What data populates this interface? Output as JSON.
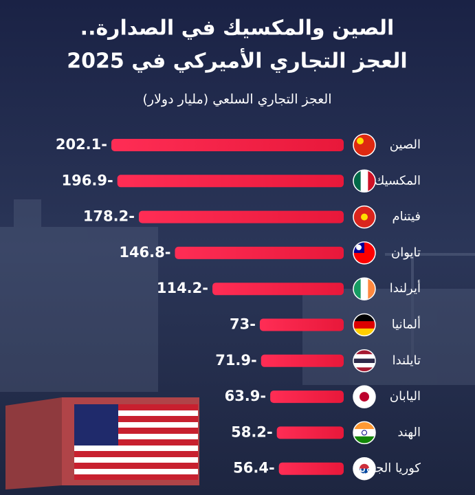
{
  "chart_data": {
    "type": "bar",
    "orientation": "horizontal",
    "title": [
      "الصين والمكسيك في الصدارة..",
      "العجز التجاري الأميركي في 2025"
    ],
    "subtitle": "العجز التجاري السلعي (مليار دولار)",
    "categories": [
      "الصين",
      "المكسيك",
      "فيتنام",
      "تايوان",
      "أيرلندا",
      "ألمانيا",
      "تايلندا",
      "اليابان",
      "الهند",
      "كوريا الجنوبية"
    ],
    "values": [
      -202.1,
      -196.9,
      -178.2,
      -146.8,
      -114.2,
      -73,
      -71.9,
      -63.9,
      -58.2,
      -56.4
    ],
    "color": "#f0203f"
  }
}
